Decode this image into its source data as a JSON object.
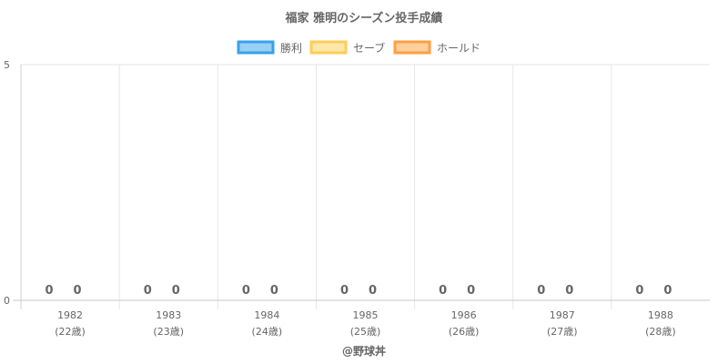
{
  "chart_data": {
    "type": "bar",
    "title": "福家 雅明のシーズン投手成績",
    "categories": [
      "1982",
      "1983",
      "1984",
      "1985",
      "1986",
      "1987",
      "1988"
    ],
    "category_sublabels": [
      "(22歳)",
      "(23歳)",
      "(24歳)",
      "(25歳)",
      "(26歳)",
      "(27歳)",
      "(28歳)"
    ],
    "series": [
      {
        "name": "勝利",
        "values": [
          0,
          0,
          0,
          0,
          0,
          0,
          0
        ],
        "color": "#36a2eb"
      },
      {
        "name": "セーブ",
        "values": [
          0,
          0,
          0,
          0,
          0,
          0,
          0
        ],
        "color": "#ffcd56"
      },
      {
        "name": "ホールド",
        "values": [
          0,
          0,
          0,
          0,
          0,
          0,
          0
        ],
        "color": "#ff9f40"
      }
    ],
    "data_labels": [
      [
        "0",
        "0"
      ],
      [
        "0",
        "0"
      ],
      [
        "0",
        "0"
      ],
      [
        "0",
        "0"
      ],
      [
        "0",
        "0"
      ],
      [
        "0",
        "0"
      ],
      [
        "0",
        "0"
      ]
    ],
    "ylim": [
      0,
      5
    ],
    "yticks": [
      "0",
      "5"
    ],
    "grid": true,
    "legend_position": "top",
    "credit": "@野球丼"
  }
}
